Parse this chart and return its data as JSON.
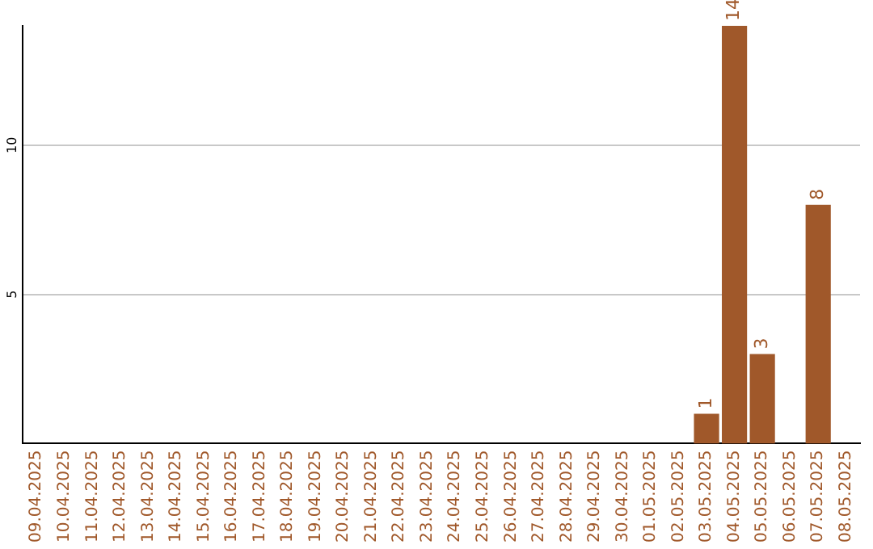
{
  "chart_data": {
    "type": "bar",
    "categories": [
      "09.04.2025",
      "10.04.2025",
      "11.04.2025",
      "12.04.2025",
      "13.04.2025",
      "14.04.2025",
      "15.04.2025",
      "16.04.2025",
      "17.04.2025",
      "18.04.2025",
      "19.04.2025",
      "20.04.2025",
      "21.04.2025",
      "22.04.2025",
      "23.04.2025",
      "24.04.2025",
      "25.04.2025",
      "26.04.2025",
      "27.04.2025",
      "28.04.2025",
      "29.04.2025",
      "30.04.2025",
      "01.05.2025",
      "02.05.2025",
      "03.05.2025",
      "04.05.2025",
      "05.05.2025",
      "06.05.2025",
      "07.05.2025",
      "08.05.2025"
    ],
    "values": [
      0,
      0,
      0,
      0,
      0,
      0,
      0,
      0,
      0,
      0,
      0,
      0,
      0,
      0,
      0,
      0,
      0,
      0,
      0,
      0,
      0,
      0,
      0,
      0,
      1,
      14,
      3,
      0,
      8,
      0
    ],
    "value_labels": [
      null,
      null,
      null,
      null,
      null,
      null,
      null,
      null,
      null,
      null,
      null,
      null,
      null,
      null,
      null,
      null,
      null,
      null,
      null,
      null,
      null,
      null,
      null,
      null,
      "1",
      "14",
      "3",
      null,
      "8",
      null
    ],
    "color": "#a0582a",
    "ylim": [
      0,
      14
    ],
    "yticks": [
      5,
      10
    ],
    "grid": "y",
    "legend": false
  }
}
